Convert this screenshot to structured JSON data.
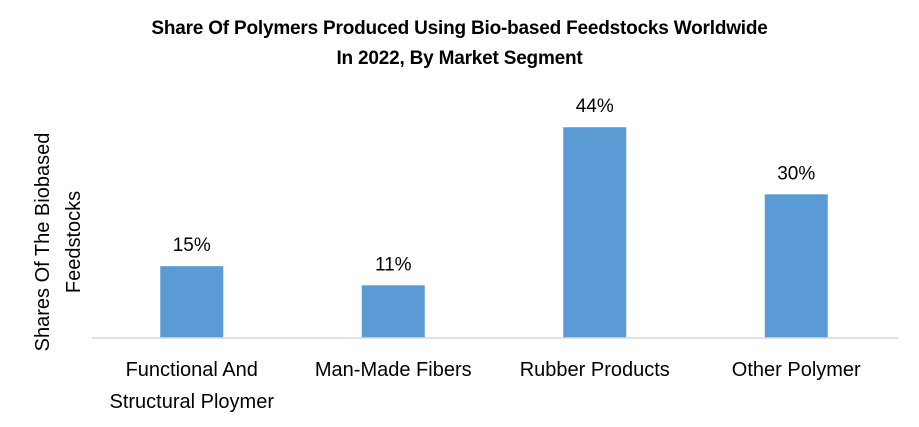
{
  "chart_data": {
    "type": "bar",
    "title_lines": [
      "Share Of Polymers Produced Using Bio-based Feedstocks Worldwide",
      "In 2022, By Market Segment"
    ],
    "ylabel_lines": [
      "Shares Of The Biobased",
      "Feedstocks"
    ],
    "xlabel": "",
    "categories": [
      [
        "Functional And",
        "Structural Ploymer"
      ],
      [
        "Man-Made Fibers"
      ],
      [
        "Rubber Products"
      ],
      [
        "Other Polymer"
      ]
    ],
    "values": [
      15,
      11,
      44,
      30
    ],
    "data_labels": [
      "15%",
      "11%",
      "44%",
      "30%"
    ],
    "ylim": [
      0,
      50
    ],
    "grid": false,
    "bar_color": "#5B9BD5",
    "axis_color": "#D9D9D9"
  }
}
